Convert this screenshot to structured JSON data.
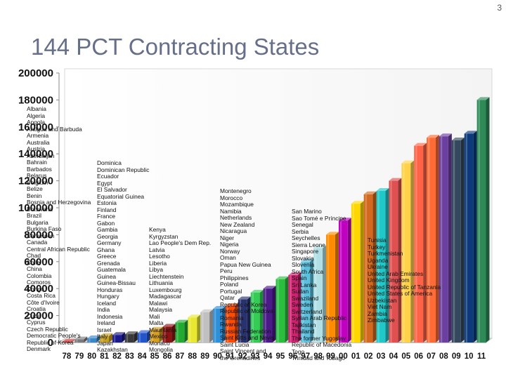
{
  "page_number": "3",
  "chart_data": {
    "type": "bar",
    "title": "144 PCT Contracting States",
    "xlabel": "",
    "ylabel": "",
    "ylim": [
      0,
      200000
    ],
    "yticks": [
      0,
      20000,
      40000,
      60000,
      80000,
      100000,
      120000,
      140000,
      160000,
      180000,
      200000
    ],
    "categories": [
      "78",
      "79",
      "80",
      "81",
      "82",
      "83",
      "84",
      "85",
      "86",
      "87",
      "88",
      "89",
      "90",
      "91",
      "92",
      "93",
      "94",
      "95",
      "96",
      "97",
      "98",
      "99",
      "00",
      "01",
      "02",
      "03",
      "04",
      "05",
      "06",
      "07",
      "08",
      "09",
      "10",
      "11"
    ],
    "values": [
      400,
      2300,
      3100,
      4800,
      5600,
      6200,
      7000,
      9500,
      11700,
      14800,
      18600,
      22500,
      25000,
      27000,
      32000,
      37000,
      40000,
      47000,
      50000,
      60000,
      70000,
      80000,
      90500,
      103000,
      110000,
      112500,
      120000,
      133000,
      146000,
      152000,
      153000,
      150000,
      155000,
      180000
    ],
    "colors": [
      "#d81e1e",
      "#7a7a7a",
      "#3a86c8",
      "#c8a020",
      "#1a1a8c",
      "#3a3a3a",
      "#2255cc",
      "#d8a020",
      "#8e1414",
      "#22aa33",
      "#e8e830",
      "#c0c0c0",
      "#2d8fd8",
      "#ff4a00",
      "#27326e",
      "#33cc55",
      "#4a1a88",
      "#2bbf3f",
      "#d02070",
      "#5bc0de",
      "#b0e0e6",
      "#ff8c00",
      "#c000c0",
      "#ffd700",
      "#d2691e",
      "#20c8c8",
      "#e05050",
      "#ffd24a",
      "#ff6347",
      "#ff6b35",
      "#6b3fa0",
      "#34495e",
      "#0d3a7a",
      "#2e8b57"
    ],
    "country_columns": [
      [
        "Albania",
        "Algeria",
        "Angola",
        "Antigua and Barbuda",
        "Armenia",
        "Australia",
        "Austria",
        "Azerbaijan",
        "Bahrain",
        "Barbados",
        "Belarus",
        "Belgium",
        "Belize",
        "Benin",
        "Bosnia and Herzegovina",
        "Botswana",
        "Brazil",
        "Bulgaria",
        "Burkina Faso",
        "Cameroon",
        "Canada",
        "Central African Republic",
        "Chad",
        "Chile",
        "China",
        "Colombia",
        "Comoros",
        "Congo",
        "Costa Rica",
        "Côte d'Ivoire",
        "Croatia",
        "Cuba",
        "Cyprus",
        "Czech Republic",
        "Democratic People's",
        "Republic of Korea",
        "Denmark"
      ],
      [
        "Dominica",
        "Dominican Republic",
        "Ecuador",
        "Egypt",
        "El Salvador",
        "Equatorial Guinea",
        "Estonia",
        "Finland",
        "France",
        "Gabon",
        "Gambia",
        "Georgia",
        "Germany",
        "Ghana",
        "Greece",
        "Grenada",
        "Guatemala",
        "Guinea",
        "Guinea-Bissau",
        "Honduras",
        "Hungary",
        "Iceland",
        "India",
        "Indonesia",
        "Ireland",
        "Israel",
        "Italy",
        "Japan",
        "Kazakhstan"
      ],
      [
        "Kenya",
        "Kyrgyzstan",
        "Lao People's Dem Rep.",
        "Latvia",
        "Lesotho",
        "Liberia",
        "Libya",
        "Liechtenstein",
        "Lithuania",
        "Luxembourg",
        "Madagascar",
        "Malawi",
        "Malaysia",
        "Mali",
        "Malta",
        "Mauritania",
        "Mexico",
        "Monaco",
        "Mongolia"
      ],
      [
        "Montenegro",
        "Morocco",
        "Mozambique",
        "Namibia",
        "Netherlands",
        "New Zealand",
        "Nicaragua",
        "Niger",
        "Nigeria",
        "Norway",
        "Oman",
        "Papua New Guinea",
        "Peru",
        "Philippines",
        "Poland",
        "Portugal",
        "Qatar",
        "Republic of Korea",
        "Republic of Moldova",
        "Romania",
        "Rwanda",
        "Russian Federation",
        "Saint Kitts and Nevis",
        "Saint Lucia",
        "Saint Vincent and",
        "the Grenadines"
      ],
      [
        "San Marino",
        "Sao Tomé e Príncipe",
        "Senegal",
        "Serbia",
        "Seychelles",
        "Sierra Leone",
        "Singapore",
        "Slovakia",
        "Slovenia",
        "South Africa",
        "Spain",
        "Sri Lanka",
        "Sudan",
        "Swaziland",
        "Sweden",
        "Switzerland",
        "Syrian Arab Republic",
        "Tajikistan",
        "Thailand",
        "The former Yugoslav",
        "Republic of Macedonia",
        "Togo",
        "Trinidad and Tobago"
      ],
      [
        "Tunisia",
        "Turkey",
        "Turkmenistan",
        "Uganda",
        "Ukraine",
        "United Arab Emirates",
        "United Kingdom",
        "United Republic of Tanzania",
        "United States of America",
        "Uzbekistan",
        "Viet Nam",
        "Zambia",
        "Zimbabwe"
      ]
    ]
  }
}
